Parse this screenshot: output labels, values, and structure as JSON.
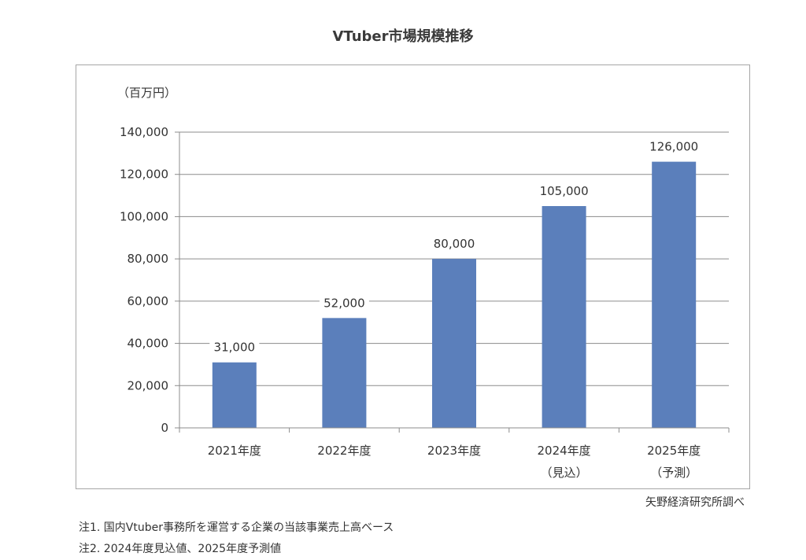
{
  "chart_data": {
    "type": "bar",
    "title": "VTuber市場規模推移",
    "unit_label": "（百万円）",
    "categories": [
      [
        "2021年度"
      ],
      [
        "2022年度"
      ],
      [
        "2023年度"
      ],
      [
        "2024年度",
        "（見込）"
      ],
      [
        "2025年度",
        "（予測）"
      ]
    ],
    "values": [
      31000,
      52000,
      80000,
      105000,
      126000
    ],
    "value_labels": [
      "31,000",
      "52,000",
      "80,000",
      "105,000",
      "126,000"
    ],
    "ylim": [
      0,
      140000
    ],
    "yticks": [
      0,
      20000,
      40000,
      60000,
      80000,
      100000,
      120000,
      140000
    ],
    "ytick_labels": [
      "0",
      "20,000",
      "40,000",
      "60,000",
      "80,000",
      "100,000",
      "120,000",
      "140,000"
    ],
    "grid": true,
    "bar_color": "#5b7fbb"
  },
  "source": "矢野経済研究所調べ",
  "notes": [
    "注1. 国内Vtuber事務所を運営する企業の当該事業売上高ベース",
    "注2. 2024年度見込値、2025年度予測値"
  ]
}
